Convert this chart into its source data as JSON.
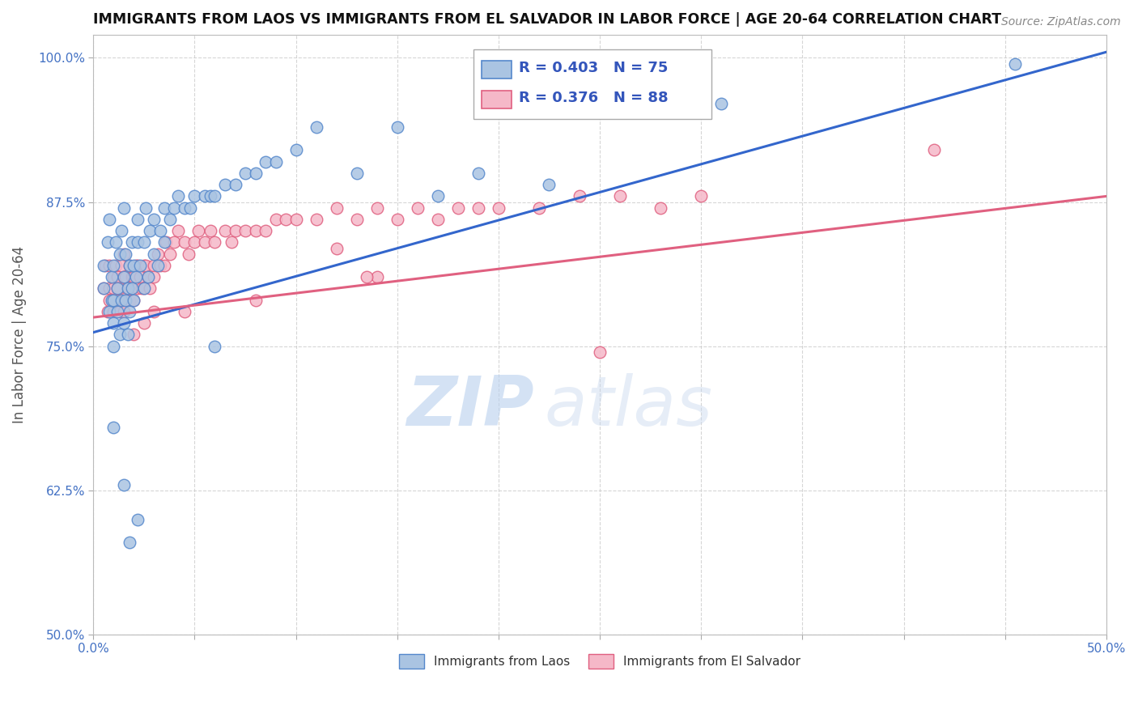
{
  "title": "IMMIGRANTS FROM LAOS VS IMMIGRANTS FROM EL SALVADOR IN LABOR FORCE | AGE 20-64 CORRELATION CHART",
  "source": "Source: ZipAtlas.com",
  "ylabel": "In Labor Force | Age 20-64",
  "xlim": [
    0.0,
    0.5
  ],
  "ylim": [
    0.5,
    1.02
  ],
  "xticks": [
    0.0,
    0.05,
    0.1,
    0.15,
    0.2,
    0.25,
    0.3,
    0.35,
    0.4,
    0.45,
    0.5
  ],
  "xticklabels": [
    "0.0%",
    "",
    "",
    "",
    "",
    "",
    "",
    "",
    "",
    "",
    "50.0%"
  ],
  "yticks": [
    0.5,
    0.625,
    0.75,
    0.875,
    1.0
  ],
  "yticklabels": [
    "50.0%",
    "62.5%",
    "75.0%",
    "87.5%",
    "100.0%"
  ],
  "laos_color": "#aac4e2",
  "laos_edge_color": "#5588cc",
  "salvador_color": "#f5b8c8",
  "salvador_edge_color": "#e06080",
  "laos_line_color": "#3366cc",
  "salvador_line_color": "#e06080",
  "R_laos": 0.403,
  "N_laos": 75,
  "R_salvador": 0.376,
  "N_salvador": 88,
  "laos_line_x0": 0.0,
  "laos_line_y0": 0.762,
  "laos_line_x1": 0.5,
  "laos_line_y1": 1.005,
  "salv_line_x0": 0.0,
  "salv_line_y0": 0.775,
  "salv_line_x1": 0.5,
  "salv_line_y1": 0.88
}
